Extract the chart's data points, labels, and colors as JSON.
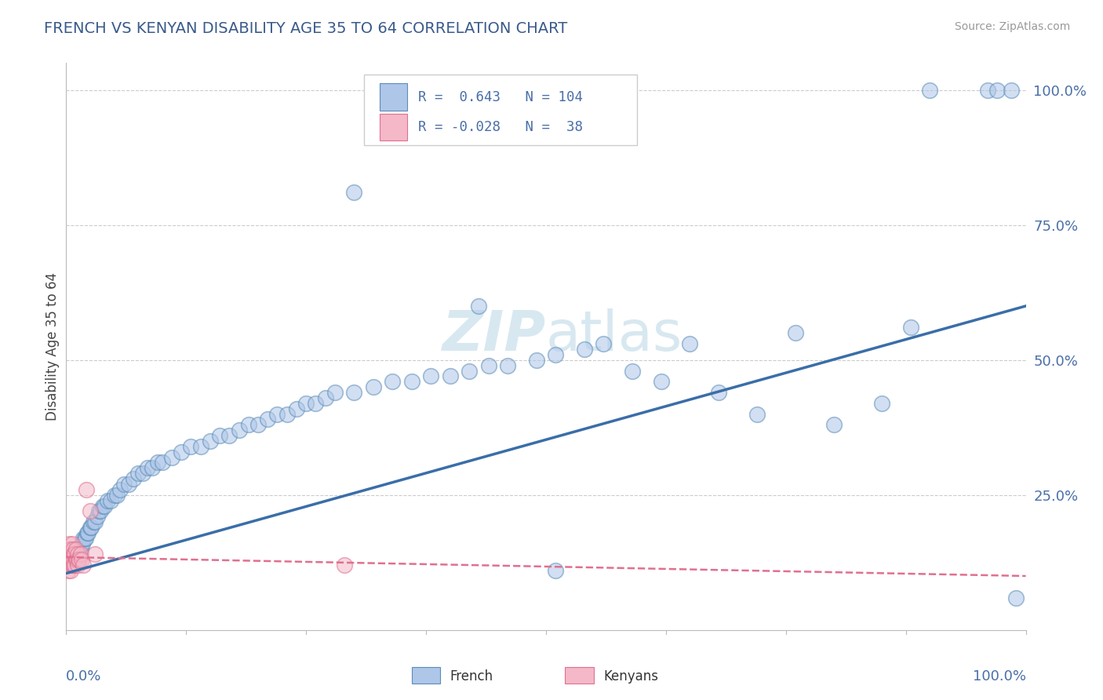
{
  "title": "FRENCH VS KENYAN DISABILITY AGE 35 TO 64 CORRELATION CHART",
  "source_text": "Source: ZipAtlas.com",
  "ylabel": "Disability Age 35 to 64",
  "legend_french_R": "0.643",
  "legend_french_N": "104",
  "legend_kenyan_R": "-0.028",
  "legend_kenyan_N": "38",
  "blue_fill": "#AEC6E8",
  "blue_edge": "#5B8DB8",
  "pink_fill": "#F4B8C8",
  "pink_edge": "#E07090",
  "blue_line_color": "#3A6EA8",
  "pink_line_color": "#E07090",
  "text_color": "#4A6FA8",
  "title_color": "#3A5A8A",
  "watermark_color": "#D8E8F0",
  "french_x": [
    0.001,
    0.002,
    0.003,
    0.003,
    0.004,
    0.005,
    0.005,
    0.006,
    0.006,
    0.007,
    0.007,
    0.008,
    0.008,
    0.009,
    0.009,
    0.01,
    0.01,
    0.011,
    0.011,
    0.012,
    0.012,
    0.013,
    0.013,
    0.014,
    0.014,
    0.015,
    0.016,
    0.017,
    0.018,
    0.019,
    0.02,
    0.022,
    0.023,
    0.025,
    0.026,
    0.028,
    0.03,
    0.032,
    0.034,
    0.036,
    0.038,
    0.04,
    0.043,
    0.046,
    0.05,
    0.053,
    0.056,
    0.06,
    0.065,
    0.07,
    0.075,
    0.08,
    0.085,
    0.09,
    0.095,
    0.1,
    0.11,
    0.12,
    0.13,
    0.14,
    0.15,
    0.16,
    0.17,
    0.18,
    0.19,
    0.2,
    0.21,
    0.22,
    0.23,
    0.24,
    0.25,
    0.26,
    0.27,
    0.28,
    0.3,
    0.32,
    0.34,
    0.36,
    0.38,
    0.4,
    0.42,
    0.44,
    0.46,
    0.49,
    0.51,
    0.54,
    0.56,
    0.59,
    0.62,
    0.65,
    0.68,
    0.72,
    0.76,
    0.8,
    0.85,
    0.88,
    0.3,
    0.43,
    0.9,
    0.96,
    0.97,
    0.985,
    0.51,
    0.99
  ],
  "french_y": [
    0.13,
    0.14,
    0.12,
    0.15,
    0.13,
    0.14,
    0.15,
    0.13,
    0.14,
    0.13,
    0.14,
    0.13,
    0.14,
    0.15,
    0.14,
    0.13,
    0.14,
    0.14,
    0.15,
    0.14,
    0.15,
    0.14,
    0.15,
    0.14,
    0.15,
    0.15,
    0.16,
    0.16,
    0.17,
    0.17,
    0.17,
    0.18,
    0.18,
    0.19,
    0.19,
    0.2,
    0.2,
    0.21,
    0.22,
    0.22,
    0.23,
    0.23,
    0.24,
    0.24,
    0.25,
    0.25,
    0.26,
    0.27,
    0.27,
    0.28,
    0.29,
    0.29,
    0.3,
    0.3,
    0.31,
    0.31,
    0.32,
    0.33,
    0.34,
    0.34,
    0.35,
    0.36,
    0.36,
    0.37,
    0.38,
    0.38,
    0.39,
    0.4,
    0.4,
    0.41,
    0.42,
    0.42,
    0.43,
    0.44,
    0.44,
    0.45,
    0.46,
    0.46,
    0.47,
    0.47,
    0.48,
    0.49,
    0.49,
    0.5,
    0.51,
    0.52,
    0.53,
    0.48,
    0.46,
    0.53,
    0.44,
    0.4,
    0.55,
    0.38,
    0.42,
    0.56,
    0.81,
    0.6,
    1.0,
    1.0,
    1.0,
    1.0,
    0.11,
    0.06
  ],
  "kenyan_x": [
    0.001,
    0.001,
    0.002,
    0.002,
    0.002,
    0.003,
    0.003,
    0.003,
    0.004,
    0.004,
    0.004,
    0.005,
    0.005,
    0.005,
    0.006,
    0.006,
    0.006,
    0.007,
    0.007,
    0.007,
    0.008,
    0.008,
    0.009,
    0.009,
    0.01,
    0.01,
    0.011,
    0.012,
    0.012,
    0.013,
    0.014,
    0.015,
    0.016,
    0.018,
    0.29,
    0.03,
    0.021,
    0.025
  ],
  "kenyan_y": [
    0.12,
    0.14,
    0.11,
    0.13,
    0.15,
    0.12,
    0.14,
    0.16,
    0.12,
    0.13,
    0.15,
    0.11,
    0.13,
    0.15,
    0.12,
    0.14,
    0.16,
    0.12,
    0.13,
    0.15,
    0.12,
    0.14,
    0.12,
    0.14,
    0.13,
    0.15,
    0.13,
    0.14,
    0.12,
    0.13,
    0.13,
    0.14,
    0.13,
    0.12,
    0.12,
    0.14,
    0.26,
    0.22
  ],
  "french_line_x0": 0.0,
  "french_line_y0": 0.105,
  "french_line_x1": 1.0,
  "french_line_y1": 0.6,
  "kenyan_line_x0": 0.0,
  "kenyan_line_y0": 0.135,
  "kenyan_line_x1": 1.0,
  "kenyan_line_y1": 0.1,
  "xlim": [
    0.0,
    1.0
  ],
  "ylim": [
    0.0,
    1.05
  ],
  "yticks": [
    0.25,
    0.5,
    0.75,
    1.0
  ],
  "ytick_labels": [
    "25.0%",
    "50.0%",
    "75.0%",
    "100.0%"
  ]
}
